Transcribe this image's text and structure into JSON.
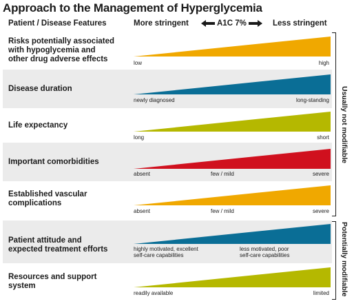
{
  "title": "Approach to the Management of Hyperglycemia",
  "header": {
    "left_label": "Patient / Disease Features",
    "more_label": "More stringent",
    "a1c_label": "A1C 7%",
    "less_label": "Less stringent"
  },
  "rows": [
    {
      "label": "Risks potentially associated\nwith hypoglycemia and\nother drug adverse effects",
      "color": "#f0a800",
      "left": "low",
      "mid": "",
      "right": "high"
    },
    {
      "label": "Disease duration",
      "color": "#0a6e96",
      "left": "newly diagnosed",
      "mid": "",
      "right": "long-standing"
    },
    {
      "label": "Life expectancy",
      "color": "#b5b800",
      "left": "long",
      "mid": "",
      "right": "short"
    },
    {
      "label": "Important comorbidities",
      "color": "#d0101e",
      "left": "absent",
      "mid": "few / mild",
      "right": "severe"
    },
    {
      "label": "Established vascular\ncomplications",
      "color": "#f0a800",
      "left": "absent",
      "mid": "few / mild",
      "right": "severe"
    },
    {
      "label": "Patient attitude and\nexpected treatment efforts",
      "color": "#0a6e96",
      "left": "highly motivated, excellent\nself-care capabilities",
      "mid": "",
      "right": "less motivated, poor\nself-care capabilities"
    },
    {
      "label": "Resources and support\nsystem",
      "color": "#b5b800",
      "left": "readily available",
      "mid": "",
      "right": "limited"
    }
  ],
  "groups": {
    "not_modifiable": "Usually not modifiable",
    "modifiable": "Potentially modifiable"
  }
}
